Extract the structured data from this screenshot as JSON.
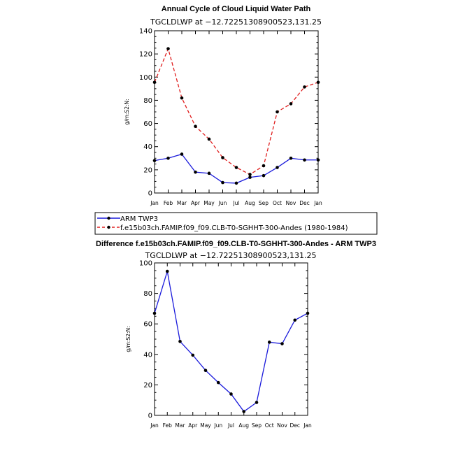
{
  "chart_data": [
    {
      "type": "line",
      "title": "Annual Cycle of Cloud Liquid Water Path",
      "subtitle": "TGCLDLWP  at  −12.72251308900523,131.25",
      "ylabel": "g/m:S2:N:",
      "ylim": [
        0,
        140
      ],
      "yticks": [
        "0",
        "20",
        "40",
        "60",
        "80",
        "100",
        "120",
        "140"
      ],
      "categories": [
        "Jan",
        "Feb",
        "Mar",
        "Apr",
        "May",
        "Jun",
        "Jul",
        "Aug",
        "Sep",
        "Oct",
        "Nov",
        "Dec",
        "Jan"
      ],
      "series": [
        {
          "name": "ARM TWP3",
          "color": "#1a1adb",
          "dash": "solid",
          "values": [
            28,
            30,
            33.5,
            18,
            17,
            9,
            8.5,
            13.5,
            15,
            22,
            30,
            28.5,
            28.5
          ]
        },
        {
          "name": "f.e15b03ch.FAMIP.f09_f09.CLB-T0-SGHHT-300-Andes (1980-1984)",
          "color": "#e01e1e",
          "dash": "dashed",
          "values": [
            95.5,
            124.5,
            82,
            57.5,
            46.5,
            30.5,
            22,
            16,
            23.5,
            70,
            77,
            91.5,
            95.5
          ]
        }
      ]
    },
    {
      "type": "line",
      "title": "Difference f.e15b03ch.FAMIP.f09_f09.CLB-T0-SGHHT-300-Andes - ARM TWP3",
      "subtitle": "TGCLDLWP  at  −12.72251308900523,131.25",
      "ylabel": "g/m:S2:N:",
      "ylim": [
        0,
        100
      ],
      "yticks": [
        "0",
        "20",
        "40",
        "60",
        "80",
        "100"
      ],
      "categories": [
        "Jan",
        "Feb",
        "Mar",
        "Apr",
        "May",
        "Jun",
        "Jul",
        "Aug",
        "Sep",
        "Oct",
        "Nov",
        "Dec",
        "Jan"
      ],
      "series": [
        {
          "name": "Difference",
          "color": "#1a1adb",
          "dash": "solid",
          "values": [
            67,
            94.5,
            48.5,
            39.5,
            29.5,
            21.5,
            14,
            2.5,
            8.5,
            48,
            47,
            62.5,
            67
          ]
        }
      ]
    }
  ]
}
